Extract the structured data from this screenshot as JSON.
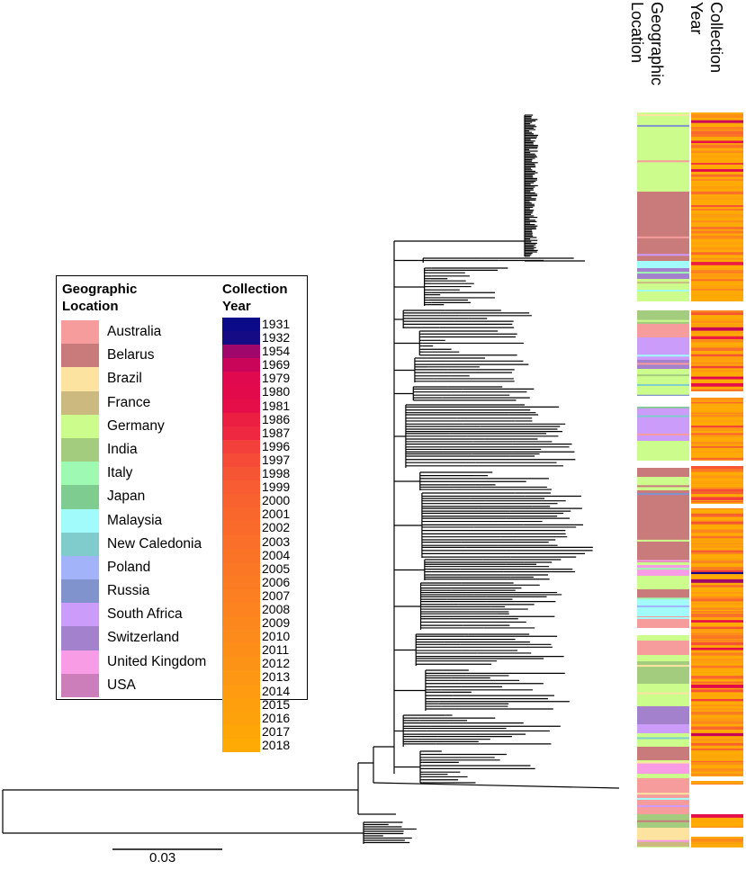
{
  "legend": {
    "geo_title_line1": "Geographic",
    "geo_title_line2": "Location",
    "year_title_line1": "Collection",
    "year_title_line2": "Year",
    "locations": [
      {
        "name": "Australia",
        "color": "#F79C9C"
      },
      {
        "name": "Belarus",
        "color": "#C97B7B"
      },
      {
        "name": "Brazil",
        "color": "#FCE3A0"
      },
      {
        "name": "France",
        "color": "#CBB980"
      },
      {
        "name": "Germany",
        "color": "#CCFC8C"
      },
      {
        "name": "India",
        "color": "#A3CC7E"
      },
      {
        "name": "Italy",
        "color": "#9EF9B2"
      },
      {
        "name": "Japan",
        "color": "#7ECC90"
      },
      {
        "name": "Malaysia",
        "color": "#A1FBFB"
      },
      {
        "name": "New Caledonia",
        "color": "#80CCCC"
      },
      {
        "name": "Poland",
        "color": "#A2B3FA"
      },
      {
        "name": "Russia",
        "color": "#8193CC"
      },
      {
        "name": "South Africa",
        "color": "#CC9CFA"
      },
      {
        "name": "Switzerland",
        "color": "#A381CD"
      },
      {
        "name": "United Kingdom",
        "color": "#F79CE5"
      },
      {
        "name": "USA",
        "color": "#CC7EBA"
      }
    ],
    "years": [
      {
        "year": "1931",
        "color": "#0B0B8A"
      },
      {
        "year": "1932",
        "color": "#140B85"
      },
      {
        "year": "1954",
        "color": "#A0076B"
      },
      {
        "year": "1969",
        "color": "#C9055A"
      },
      {
        "year": "1979",
        "color": "#E0084E"
      },
      {
        "year": "1980",
        "color": "#E30A4B"
      },
      {
        "year": "1981",
        "color": "#E60E48"
      },
      {
        "year": "1986",
        "color": "#EA1F42"
      },
      {
        "year": "1987",
        "color": "#ED2840"
      },
      {
        "year": "1996",
        "color": "#F3403A"
      },
      {
        "year": "1997",
        "color": "#F54B37"
      },
      {
        "year": "1998",
        "color": "#F65534"
      },
      {
        "year": "1999",
        "color": "#F75C32"
      },
      {
        "year": "2000",
        "color": "#F8622F"
      },
      {
        "year": "2001",
        "color": "#F9672D"
      },
      {
        "year": "2002",
        "color": "#FA6B2B"
      },
      {
        "year": "2003",
        "color": "#FA6F29"
      },
      {
        "year": "2004",
        "color": "#FB7327"
      },
      {
        "year": "2005",
        "color": "#FB7725"
      },
      {
        "year": "2006",
        "color": "#FB7B23"
      },
      {
        "year": "2007",
        "color": "#FC7F21"
      },
      {
        "year": "2008",
        "color": "#FC831F"
      },
      {
        "year": "2009",
        "color": "#FC871D"
      },
      {
        "year": "2010",
        "color": "#FD8B1B"
      },
      {
        "year": "2011",
        "color": "#FD8F18"
      },
      {
        "year": "2012",
        "color": "#FD9316"
      },
      {
        "year": "2013",
        "color": "#FD9714"
      },
      {
        "year": "2014",
        "color": "#FE9B11"
      },
      {
        "year": "2015",
        "color": "#FE9F0E"
      },
      {
        "year": "2016",
        "color": "#FEA20B"
      },
      {
        "year": "2017",
        "color": "#FEA608"
      },
      {
        "year": "2018",
        "color": "#FFAA05"
      }
    ]
  },
  "columns": {
    "geo_header_line1": "Geographic",
    "geo_header_line2": "Location",
    "year_header_line1": "Collection",
    "year_header_line2": "Year"
  },
  "scale_bar": {
    "label": "0.03"
  }
}
